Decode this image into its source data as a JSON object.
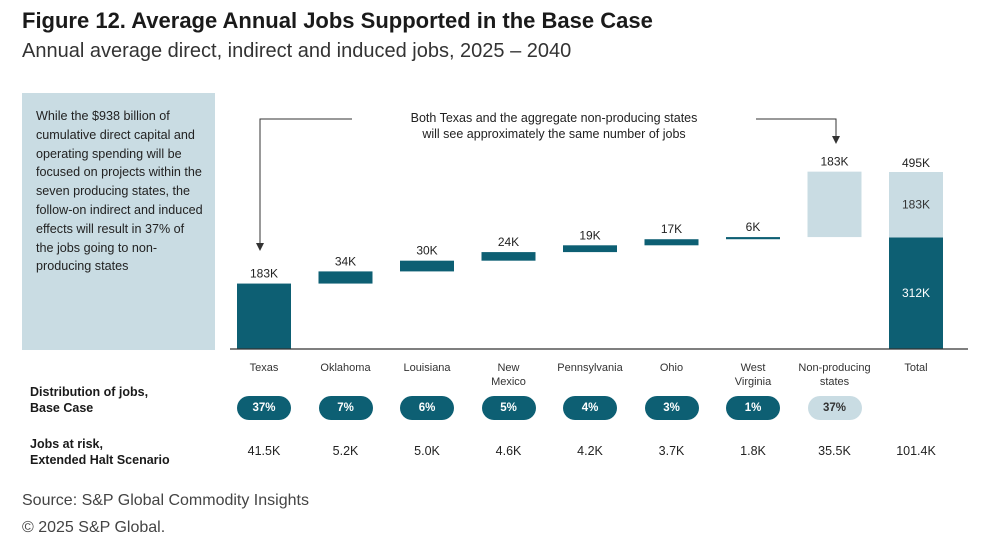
{
  "header": {
    "title": "Figure 12. Average Annual Jobs Supported in the Base Case",
    "subtitle": "Annual average direct, indirect and induced jobs, 2025 – 2040"
  },
  "sidebox_text": "While the $938 billion of cumulative direct capital and operating spending will be focused on projects within the seven producing states, the follow-on indirect and induced effects will result in 37% of the jobs going to non-producing states",
  "annotation": {
    "line1": "Both Texas and the aggregate non-producing states",
    "line2": "will see approximately the same number of jobs"
  },
  "colors": {
    "dark": "#0d5f73",
    "light": "#c9dce3",
    "axis": "#333333"
  },
  "chart_data": {
    "type": "bar",
    "variant": "waterfall",
    "unit": "thousand jobs",
    "ylim": [
      0,
      495
    ],
    "categories": [
      "Texas",
      "Oklahoma",
      "Louisiana",
      "New Mexico",
      "Pennsylvania",
      "Ohio",
      "West Virginia",
      "Non-producing states",
      "Total"
    ],
    "category_lines": [
      [
        "Texas"
      ],
      [
        "Oklahoma"
      ],
      [
        "Louisiana"
      ],
      [
        "New",
        "Mexico"
      ],
      [
        "Pennsylvania"
      ],
      [
        "Ohio"
      ],
      [
        "West",
        "Virginia"
      ],
      [
        "Non-producing",
        "states"
      ],
      [
        "Total"
      ]
    ],
    "values": [
      183,
      34,
      30,
      24,
      19,
      17,
      6,
      183,
      495
    ],
    "value_labels": [
      "183K",
      "34K",
      "30K",
      "24K",
      "19K",
      "17K",
      "6K",
      "183K",
      "495K"
    ],
    "total_segments": [
      {
        "value": 312,
        "label": "312K",
        "shade": "dark"
      },
      {
        "value": 183,
        "label": "183K",
        "shade": "light"
      }
    ],
    "bar_shades": [
      "dark",
      "dark",
      "dark",
      "dark",
      "dark",
      "dark",
      "dark",
      "light",
      "total"
    ]
  },
  "rows": {
    "distribution": {
      "label_line1": "Distribution of jobs,",
      "label_line2": "Base Case",
      "values": [
        "37%",
        "7%",
        "6%",
        "5%",
        "4%",
        "3%",
        "1%",
        "37%"
      ]
    },
    "risk": {
      "label_line1": "Jobs at risk,",
      "label_line2": "Extended Halt Scenario",
      "values": [
        "41.5K",
        "5.2K",
        "5.0K",
        "4.6K",
        "4.2K",
        "3.7K",
        "1.8K",
        "35.5K",
        "101.4K"
      ]
    }
  },
  "footer": {
    "source": "Source: S&P Global Commodity Insights",
    "copyright": "© 2025 S&P Global."
  }
}
